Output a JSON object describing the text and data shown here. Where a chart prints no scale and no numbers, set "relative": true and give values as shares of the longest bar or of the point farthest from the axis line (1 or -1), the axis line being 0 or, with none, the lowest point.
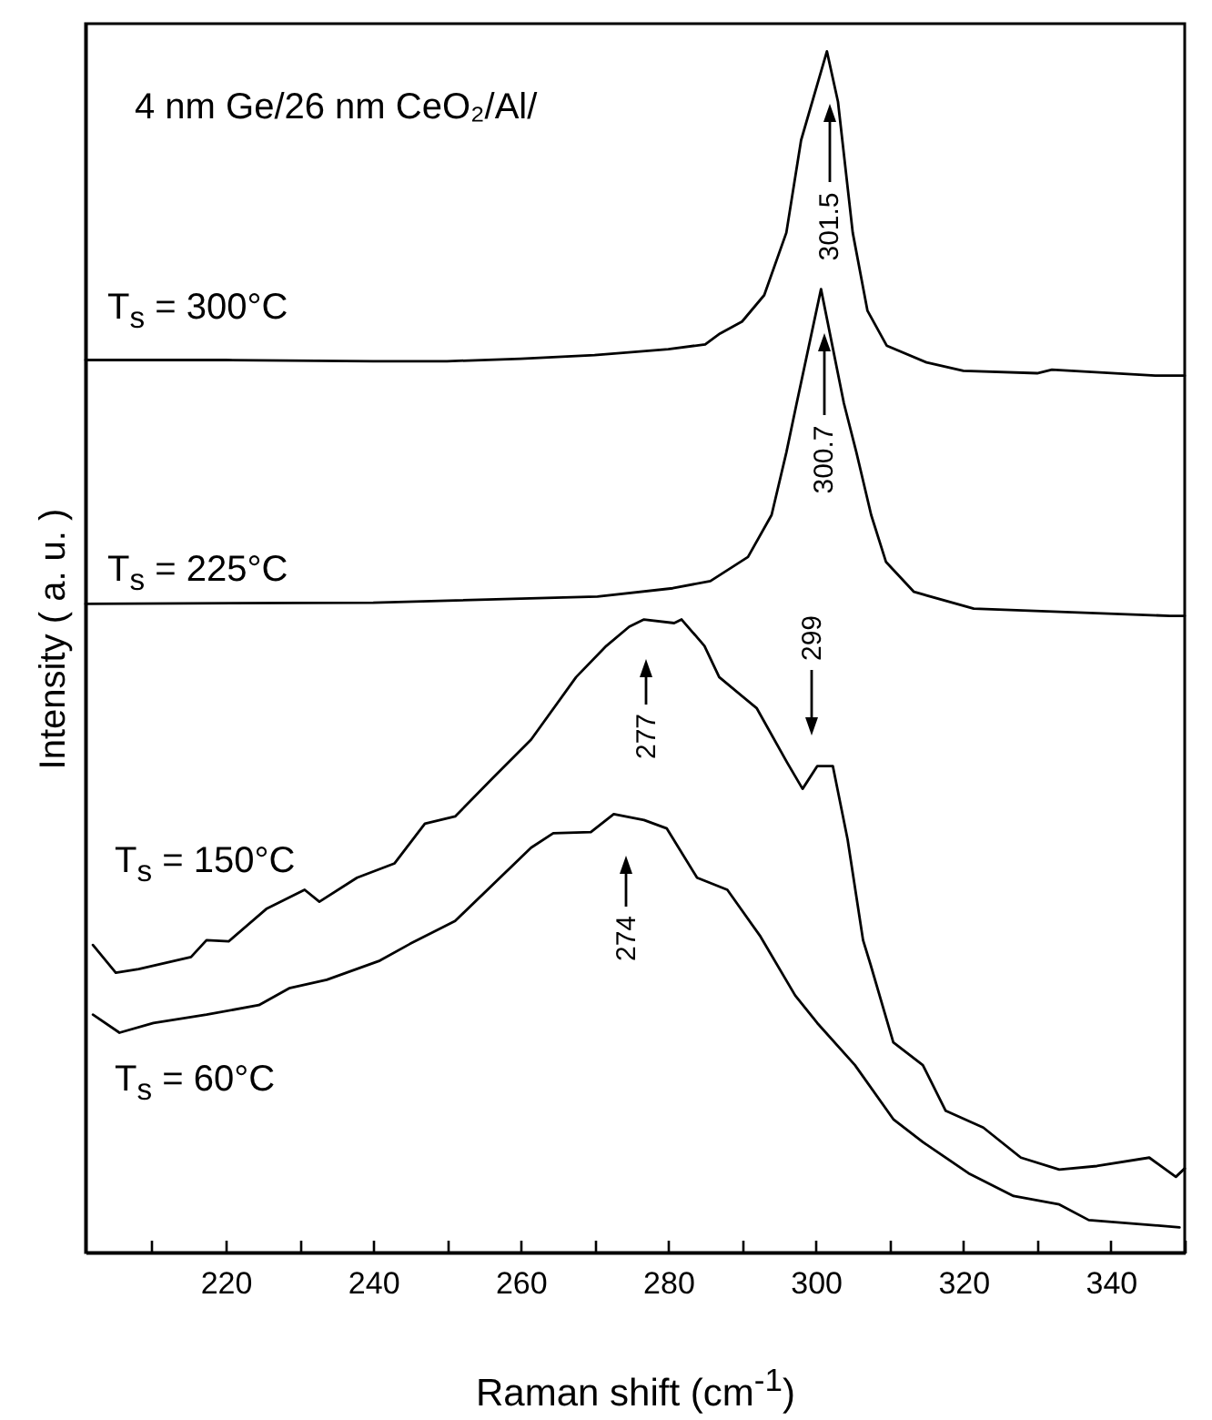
{
  "chart_data": {
    "type": "line",
    "relative": true,
    "xlabel": "Raman shift (cm$^{-1}$)",
    "ylabel": "Intensity ( a. u. )",
    "xlim": [
      201,
      350
    ],
    "xticks": [
      {
        "value": 210,
        "label": null
      },
      220,
      {
        "value": 230,
        "label": null
      },
      240,
      {
        "value": 250,
        "label": null
      },
      260,
      {
        "value": 270,
        "label": null
      },
      280,
      {
        "value": 290,
        "label": null
      },
      300,
      {
        "value": 310,
        "label": null
      },
      320,
      {
        "value": 330,
        "label": null
      },
      340,
      {
        "value": 350,
        "label": null
      }
    ],
    "tick_labels": "x",
    "marker": "none",
    "line_style": "solid",
    "annotations": [
      "4 nm Ge/26 nm CeO₂/Al/",
      "301.5",
      "300.7",
      "299",
      "277",
      "274"
    ],
    "series": [
      {
        "name": "T$_{s}$ = 300°C",
        "color": "#000000",
        "x": [
          201,
          220,
          240,
          250,
          260,
          270,
          280,
          285,
          287,
          290,
          293,
          296,
          298,
          301.5,
          303,
          305,
          307,
          309.6,
          315,
          320,
          330,
          332,
          346,
          350
        ],
        "values": [
          0.743,
          0.743,
          0.742,
          0.742,
          0.744,
          0.747,
          0.752,
          0.756,
          0.765,
          0.775,
          0.797,
          0.849,
          0.926,
          1.0,
          0.958,
          0.849,
          0.784,
          0.755,
          0.741,
          0.734,
          0.732,
          0.735,
          0.73,
          0.73
        ]
      },
      {
        "name": "T$_{s}$ =  225°C",
        "color": "#000000",
        "x": [
          201,
          240,
          270.4,
          280.6,
          285.7,
          290.8,
          294,
          296,
          297.4,
          300.7,
          303.8,
          305.5,
          307.5,
          309.5,
          313.3,
          321.4,
          348,
          350
        ],
        "values": [
          0.54,
          0.541,
          0.546,
          0.553,
          0.559,
          0.579,
          0.614,
          0.666,
          0.707,
          0.802,
          0.707,
          0.666,
          0.614,
          0.575,
          0.55,
          0.536,
          0.53,
          0.53
        ]
      },
      {
        "name": "T$_{s}$ = 150°C",
        "color": "#000000",
        "x": [
          202,
          205.1,
          208.2,
          215.3,
          217.4,
          220.4,
          225.5,
          230.7,
          232.7,
          237.8,
          242.9,
          247,
          251.1,
          256.2,
          261.4,
          267.5,
          271.6,
          274.7,
          276.7,
          280.8,
          281.8,
          284.9,
          286.9,
          292,
          296.1,
          298.2,
          300.2,
          302.3,
          304.3,
          306.4,
          307.4,
          310.5,
          314.5,
          317.6,
          322.7,
          327.8,
          333,
          338.1,
          345.2,
          348.8,
          350
        ],
        "values": [
          0.256,
          0.233,
          0.236,
          0.246,
          0.26,
          0.259,
          0.286,
          0.302,
          0.292,
          0.312,
          0.324,
          0.357,
          0.363,
          0.395,
          0.427,
          0.479,
          0.505,
          0.521,
          0.527,
          0.524,
          0.527,
          0.505,
          0.479,
          0.453,
          0.408,
          0.386,
          0.405,
          0.405,
          0.344,
          0.26,
          0.24,
          0.175,
          0.156,
          0.118,
          0.104,
          0.079,
          0.069,
          0.072,
          0.079,
          0.063,
          0.07
        ]
      },
      {
        "name": "T$_{s}$ = 60°C",
        "color": "#000000",
        "x": [
          202,
          205.6,
          210.2,
          217.4,
          224.5,
          228.6,
          233.7,
          240.9,
          245,
          251.1,
          261.4,
          264.4,
          269.5,
          272.6,
          276.7,
          279.8,
          283.9,
          288,
          292.5,
          297.2,
          300.2,
          305.3,
          310.5,
          314.5,
          320.7,
          326.8,
          333,
          337,
          343.2,
          349.3
        ],
        "values": [
          0.198,
          0.183,
          0.191,
          0.198,
          0.206,
          0.22,
          0.227,
          0.243,
          0.257,
          0.276,
          0.337,
          0.349,
          0.35,
          0.365,
          0.36,
          0.353,
          0.312,
          0.302,
          0.263,
          0.214,
          0.191,
          0.156,
          0.111,
          0.092,
          0.066,
          0.047,
          0.04,
          0.027,
          0.024,
          0.021
        ]
      }
    ]
  }
}
